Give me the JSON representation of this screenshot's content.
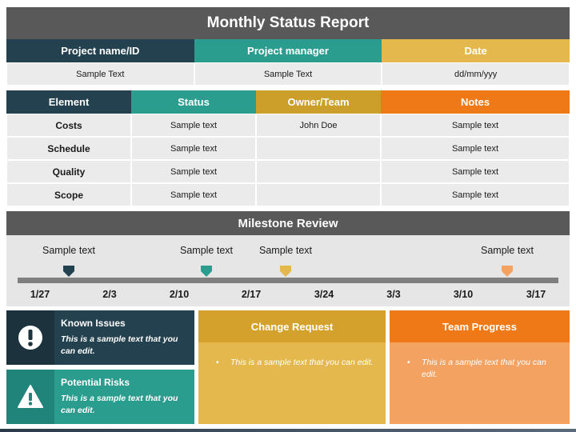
{
  "title": "Monthly Status Report",
  "project_table": {
    "headers": [
      "Project name/ID",
      "Project manager",
      "Date"
    ],
    "header_colors": [
      "#24414f",
      "#2a9d8f",
      "#e4b84c"
    ],
    "values": [
      "Sample Text",
      "Sample Text",
      "dd/mm/yyy"
    ]
  },
  "status_table": {
    "headers": [
      "Element",
      "Status",
      "Owner/Team",
      "Notes"
    ],
    "header_colors": [
      "#24414f",
      "#2a9d8f",
      "#cc9e2a",
      "#ef7916"
    ],
    "rows": [
      {
        "element": "Costs",
        "status": "Sample text",
        "owner": "John Doe",
        "notes": "Sample text"
      },
      {
        "element": "Schedule",
        "status": "Sample text",
        "owner": "",
        "notes": "Sample text"
      },
      {
        "element": "Quality",
        "status": "Sample text",
        "owner": "",
        "notes": "Sample text"
      },
      {
        "element": "Scope",
        "status": "Sample text",
        "owner": "",
        "notes": "Sample text"
      }
    ]
  },
  "milestone_review": {
    "title": "Milestone Review",
    "milestones": [
      {
        "label": "Sample text",
        "color": "#24414f"
      },
      {
        "label": "Sample text",
        "color": "#2a9d8f"
      },
      {
        "label": "Sample text",
        "color": "#e4b84c"
      },
      {
        "label": "Sample text",
        "color": "#f4a261"
      }
    ],
    "dates": [
      "1/27",
      "2/3",
      "2/10",
      "2/17",
      "3/24",
      "3/3",
      "3/10",
      "3/17"
    ]
  },
  "known_issues": {
    "title": "Known Issues",
    "body": "This is a sample text that you can edit.",
    "icon": "exclamation-circle-icon",
    "color": "#24414f"
  },
  "potential_risks": {
    "title": "Potential Risks",
    "body": "This is a sample text that you can edit.",
    "icon": "warning-triangle-icon",
    "color": "#2a9d8f"
  },
  "change_request": {
    "title": "Change Request",
    "body": "This is a sample text that you can edit.",
    "head_color": "#d4a22c",
    "body_color": "#e4b84c"
  },
  "team_progress": {
    "title": "Team Progress",
    "body": "This is a sample text that you can edit.",
    "head_color": "#ef7916",
    "body_color": "#f4a261"
  }
}
